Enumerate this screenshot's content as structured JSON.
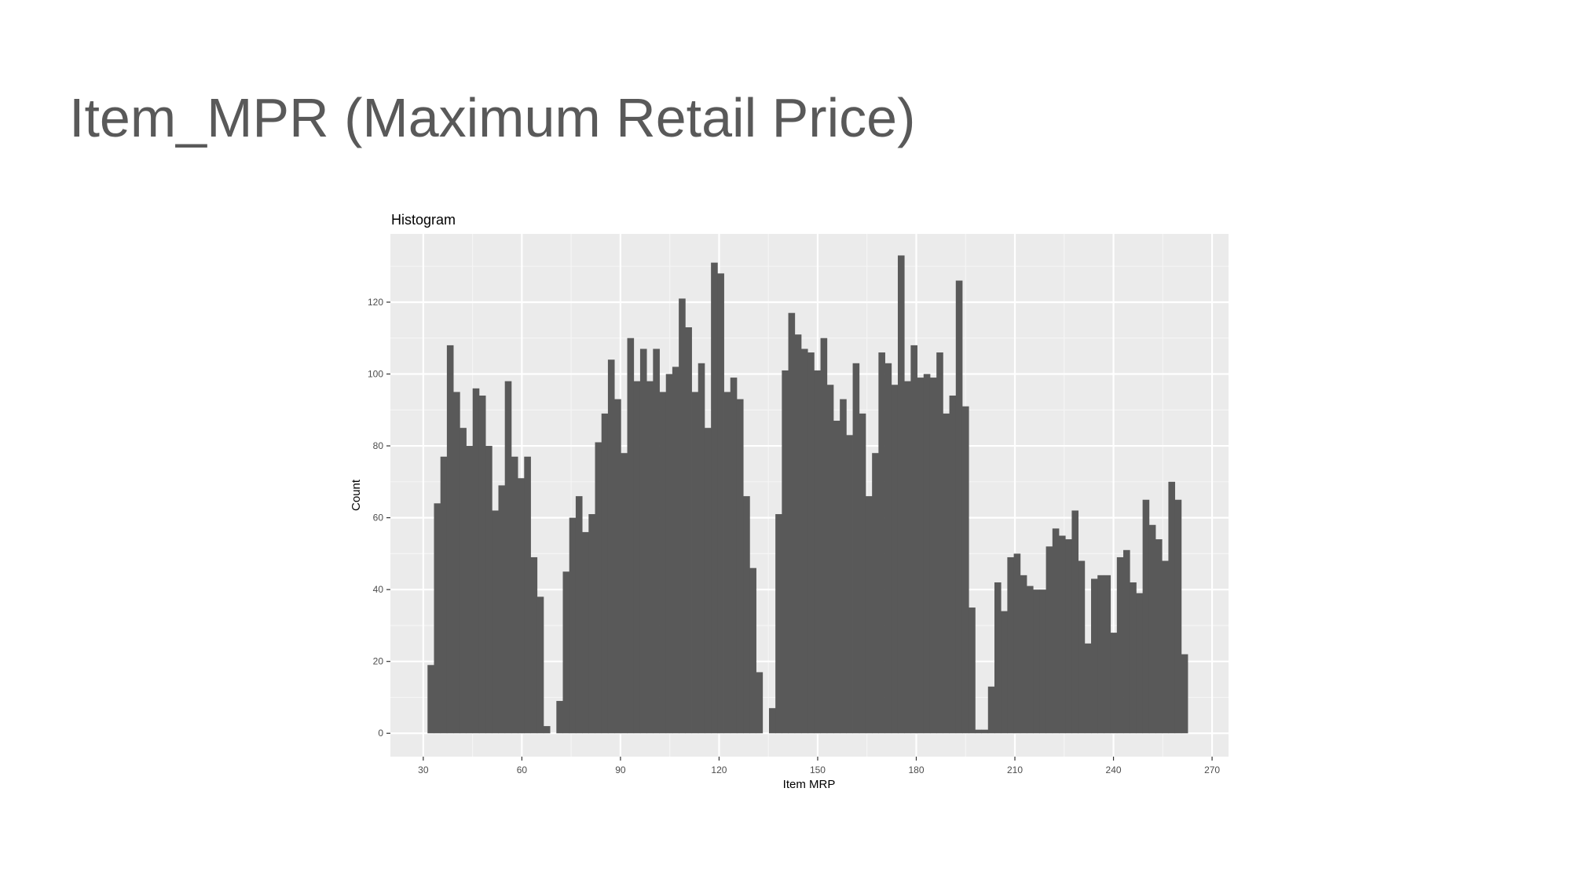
{
  "slide": {
    "title": "Item_MPR (Maximum Retail Price)"
  },
  "chart_data": {
    "type": "histogram",
    "title": "Histogram",
    "xlabel": "Item MRP",
    "ylabel": "Count",
    "xlim": [
      20,
      275
    ],
    "ylim": [
      -6.5,
      139
    ],
    "x_ticks": [
      30,
      60,
      90,
      120,
      150,
      180,
      210,
      240,
      270
    ],
    "y_ticks": [
      0,
      20,
      40,
      60,
      80,
      100,
      120
    ],
    "grid": true,
    "bin_width": 1.96,
    "bin_start": 31.3,
    "counts": [
      19,
      64,
      77,
      108,
      95,
      85,
      80,
      96,
      94,
      80,
      62,
      69,
      98,
      77,
      71,
      77,
      49,
      38,
      2,
      0,
      9,
      45,
      60,
      66,
      56,
      61,
      81,
      89,
      104,
      93,
      78,
      110,
      98,
      107,
      98,
      107,
      95,
      100,
      102,
      121,
      113,
      95,
      103,
      85,
      131,
      128,
      95,
      99,
      93,
      66,
      46,
      17,
      0,
      7,
      61,
      101,
      117,
      111,
      107,
      106,
      101,
      110,
      97,
      87,
      93,
      83,
      103,
      89,
      66,
      78,
      106,
      103,
      97,
      133,
      98,
      108,
      99,
      100,
      99,
      106,
      89,
      94,
      126,
      91,
      35,
      1,
      1,
      13,
      42,
      34,
      49,
      50,
      44,
      41,
      40,
      40,
      52,
      57,
      55,
      54,
      62,
      48,
      25,
      43,
      44,
      44,
      28,
      49,
      51,
      42,
      39,
      65,
      58,
      54,
      48,
      70,
      65,
      22
    ],
    "colors": {
      "bar": "#595959",
      "panel": "#ebebeb",
      "grid_major": "#ffffff",
      "grid_minor": "#f5f5f5"
    }
  }
}
